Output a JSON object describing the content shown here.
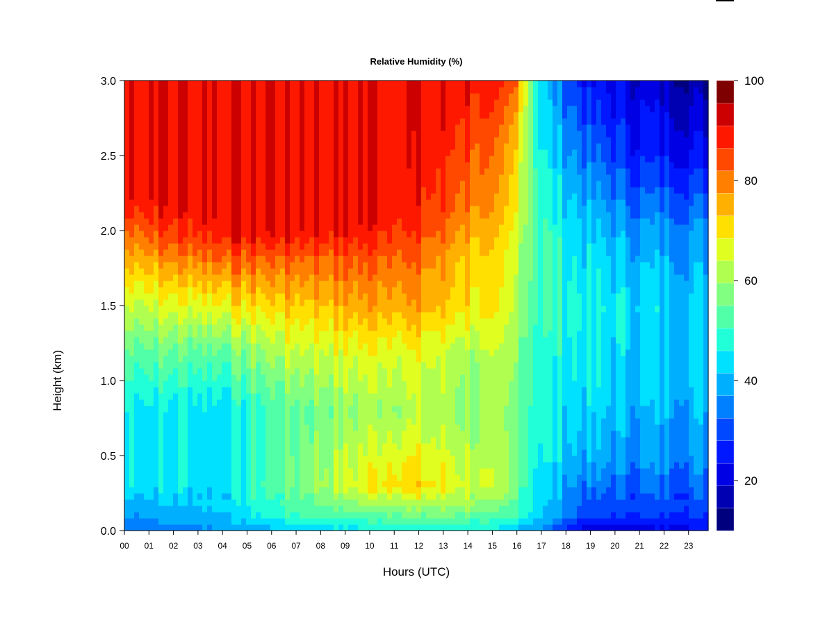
{
  "chart_data": {
    "type": "heatmap",
    "title": "Relative Humidity (%)",
    "xlabel": "Hours (UTC)",
    "ylabel": "Height (km)",
    "x_ticks": [
      "00",
      "01",
      "02",
      "03",
      "04",
      "05",
      "06",
      "07",
      "08",
      "09",
      "10",
      "11",
      "12",
      "13",
      "14",
      "15",
      "16",
      "17",
      "18",
      "19",
      "20",
      "21",
      "22",
      "23"
    ],
    "xlim": [
      0,
      23.8
    ],
    "y_ticks": [
      "0.0",
      "0.5",
      "1.0",
      "1.5",
      "2.0",
      "2.5",
      "3.0"
    ],
    "ylim": [
      0,
      3.0
    ],
    "colorbar": {
      "range": [
        10,
        100
      ],
      "step": 5,
      "tick_labels": [
        "20",
        "40",
        "60",
        "80",
        "100"
      ],
      "colors": [
        "#00007f",
        "#0000b2",
        "#0000e5",
        "#0018ff",
        "#0048ff",
        "#0080ff",
        "#00b0ff",
        "#00e0ff",
        "#20ffd8",
        "#50ffa8",
        "#80ff80",
        "#b0ff50",
        "#e0ff20",
        "#ffe000",
        "#ffb000",
        "#ff8000",
        "#ff4800",
        "#ff1800",
        "#cc0000",
        "#7f0000"
      ]
    },
    "approx_profiles": [
      {
        "hour": 0,
        "heights_km": [
          0.0,
          0.1,
          0.3,
          0.8,
          1.2,
          1.5,
          1.8,
          2.0,
          2.2,
          3.0
        ],
        "rh": [
          35,
          40,
          50,
          50,
          60,
          70,
          82,
          90,
          100,
          100
        ]
      },
      {
        "hour": 4,
        "heights_km": [
          0.0,
          0.1,
          0.3,
          0.8,
          1.2,
          1.5,
          1.8,
          2.0,
          3.0
        ],
        "rh": [
          40,
          45,
          48,
          48,
          60,
          75,
          90,
          100,
          100
        ]
      },
      {
        "hour": 7,
        "heights_km": [
          0.0,
          0.1,
          0.3,
          0.8,
          1.2,
          1.5,
          1.8,
          2.0,
          3.0
        ],
        "rh": [
          45,
          55,
          62,
          60,
          70,
          80,
          90,
          100,
          100
        ]
      },
      {
        "hour": 11,
        "heights_km": [
          0.0,
          0.15,
          0.3,
          0.8,
          1.2,
          1.5,
          1.8,
          2.1,
          3.0
        ],
        "rh": [
          50,
          65,
          80,
          68,
          75,
          85,
          92,
          100,
          100
        ]
      },
      {
        "hour": 14,
        "heights_km": [
          0.0,
          0.15,
          0.3,
          0.8,
          1.2,
          1.5,
          1.8,
          2.2,
          2.6,
          3.0
        ],
        "rh": [
          50,
          65,
          72,
          65,
          68,
          78,
          80,
          90,
          95,
          100
        ]
      },
      {
        "hour": 16,
        "heights_km": [
          0.0,
          0.1,
          0.3,
          0.8,
          1.2,
          1.5,
          1.8,
          2.2,
          2.6,
          3.0
        ],
        "rh": [
          45,
          55,
          62,
          62,
          65,
          68,
          70,
          75,
          80,
          90
        ]
      },
      {
        "hour": 17,
        "heights_km": [
          0.0,
          0.1,
          0.5,
          1.0,
          1.5,
          2.0,
          2.5,
          3.0
        ],
        "rh": [
          40,
          45,
          50,
          52,
          55,
          55,
          50,
          45
        ]
      },
      {
        "hour": 19,
        "heights_km": [
          0.0,
          0.1,
          0.5,
          1.0,
          1.5,
          2.0,
          2.5,
          3.0
        ],
        "rh": [
          18,
          30,
          42,
          48,
          50,
          45,
          35,
          25
        ]
      },
      {
        "hour": 21,
        "heights_km": [
          0.0,
          0.1,
          0.5,
          1.0,
          1.5,
          2.0,
          2.5,
          3.0
        ],
        "rh": [
          22,
          30,
          40,
          45,
          48,
          40,
          28,
          22
        ]
      },
      {
        "hour": 23.8,
        "heights_km": [
          0.0,
          0.1,
          0.5,
          1.0,
          1.5,
          2.0,
          2.5,
          3.0
        ],
        "rh": [
          25,
          30,
          40,
          45,
          45,
          40,
          25,
          15
        ]
      }
    ]
  }
}
